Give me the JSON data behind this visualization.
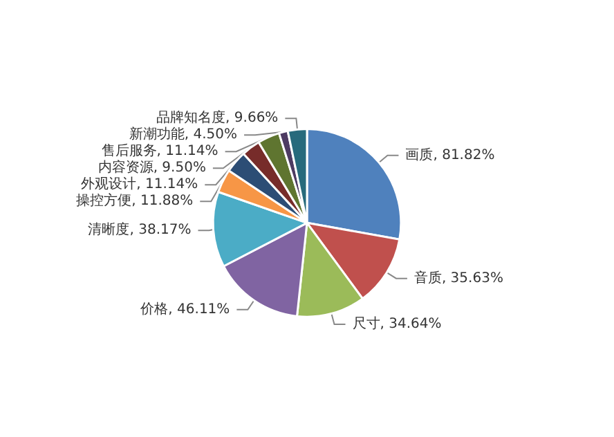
{
  "chart_data": {
    "type": "pie",
    "categories": [
      "画质",
      "音质",
      "尺寸",
      "价格",
      "清晰度",
      "操控方便",
      "外观设计",
      "内容资源",
      "售后服务",
      "新潮功能",
      "品牌知名度"
    ],
    "values": [
      81.82,
      35.63,
      34.64,
      46.11,
      38.17,
      11.88,
      11.14,
      9.5,
      11.14,
      4.5,
      9.66
    ],
    "value_labels": [
      "81.82%",
      "35.63%",
      "34.64%",
      "46.11%",
      "38.17%",
      "11.88%",
      "11.14%",
      "9.50%",
      "11.14%",
      "4.50%",
      "9.66%"
    ],
    "colors": [
      "#4f81bd",
      "#c0504d",
      "#9bbb59",
      "#8064a2",
      "#4bacc6",
      "#f79646",
      "#2c4d75",
      "#772c2a",
      "#5f7530",
      "#4d3b62",
      "#276a7c"
    ],
    "legend": false
  }
}
